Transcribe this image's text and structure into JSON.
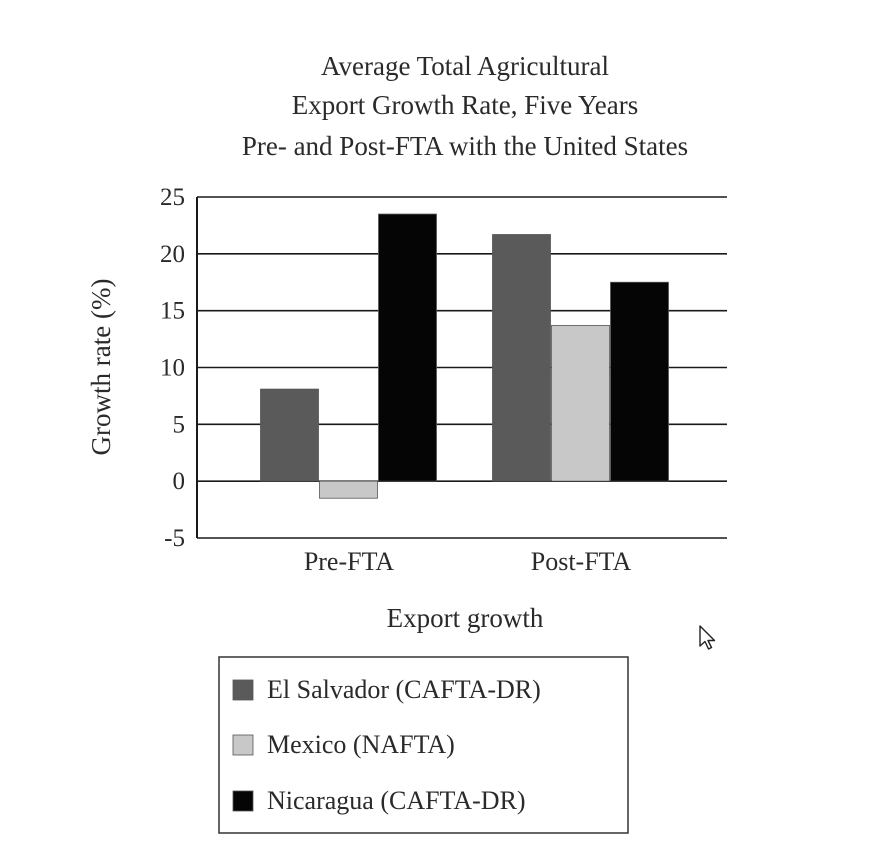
{
  "chart_data": {
    "type": "bar",
    "title": [
      "Average Total Agricultural",
      "Export Growth Rate, Five Years",
      "Pre- and Post-FTA with the United States"
    ],
    "xlabel": "Export growth",
    "ylabel": "Growth rate (%)",
    "categories": [
      "Pre-FTA",
      "Post-FTA"
    ],
    "ylim": [
      -5,
      25
    ],
    "yticks": [
      25,
      20,
      15,
      10,
      5,
      0,
      -5
    ],
    "yticklabels": [
      "25",
      "20",
      "15",
      "10",
      "5",
      "0",
      "-5"
    ],
    "grid": true,
    "legend_position": "bottom",
    "series": [
      {
        "name": "El Salvador (CAFTA-DR)",
        "values": [
          8.1,
          21.7
        ],
        "color": "#5a5a5a"
      },
      {
        "name": "Mexico (NAFTA)",
        "values": [
          -1.5,
          13.7
        ],
        "color": "#c8c8c8"
      },
      {
        "name": "Nicaragua (CAFTA-DR)",
        "values": [
          23.5,
          17.5
        ],
        "color": "#050505"
      }
    ]
  },
  "cursor": {
    "icon": "pointer-arrow-icon"
  }
}
